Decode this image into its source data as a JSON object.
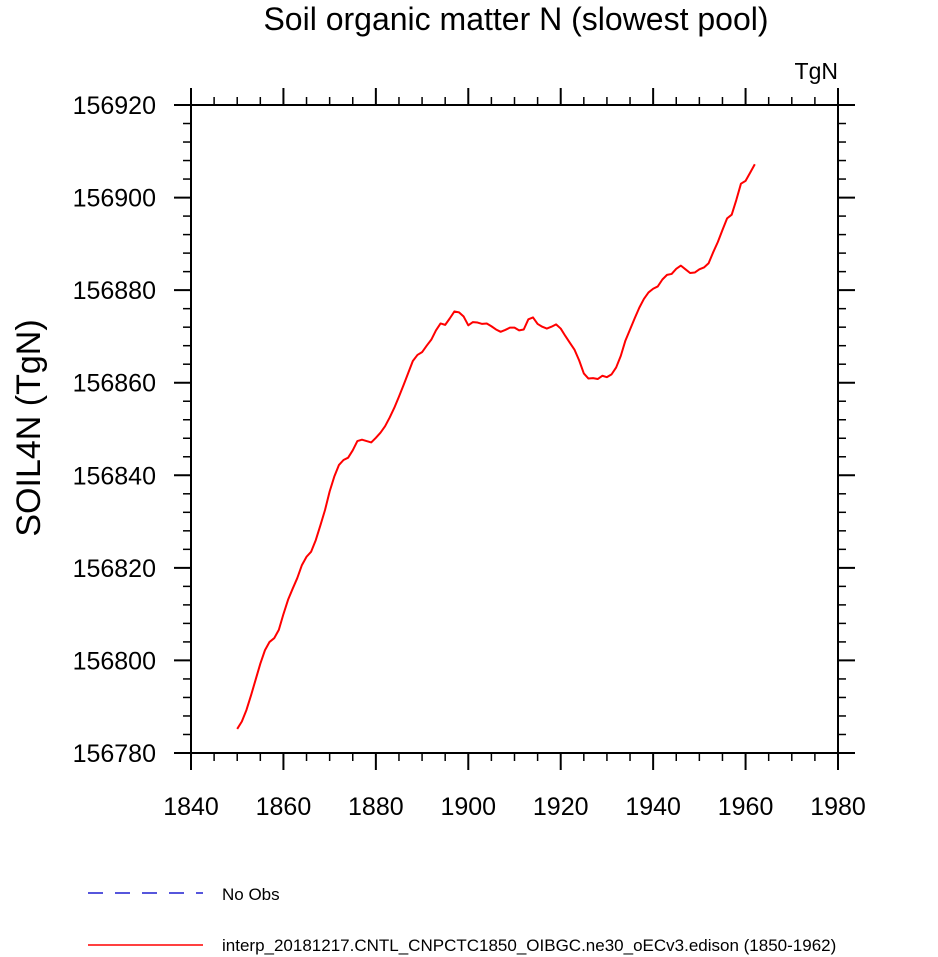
{
  "chart_data": {
    "type": "line",
    "title": "Soil organic matter N (slowest pool)",
    "units_label": "TgN",
    "ylabel": "SOIL4N  (TgN)",
    "xlabel": "",
    "xlim": [
      1840,
      1980
    ],
    "ylim": [
      156780,
      156920
    ],
    "xticks": [
      1840,
      1860,
      1880,
      1900,
      1920,
      1940,
      1960,
      1980
    ],
    "yticks": [
      156780,
      156800,
      156820,
      156840,
      156860,
      156880,
      156900,
      156920
    ],
    "x_minor_step": 5,
    "y_minor_step": 4,
    "grid": false,
    "legend_position": "bottom-left",
    "series": [
      {
        "name": "No Obs",
        "color": "#1f1fd0",
        "dash": "dashed",
        "x": [],
        "y": []
      },
      {
        "name": "interp_20181217.CNTL_CNPCTC1850_OIBGC.ne30_oECv3.edison (1850-1962)",
        "color": "#ff0000",
        "dash": "solid",
        "x": [
          1850,
          1851,
          1852,
          1853,
          1854,
          1855,
          1856,
          1857,
          1858,
          1859,
          1860,
          1861,
          1862,
          1863,
          1864,
          1865,
          1866,
          1867,
          1868,
          1869,
          1870,
          1871,
          1872,
          1873,
          1874,
          1875,
          1876,
          1877,
          1878,
          1879,
          1880,
          1881,
          1882,
          1883,
          1884,
          1885,
          1886,
          1887,
          1888,
          1889,
          1890,
          1891,
          1892,
          1893,
          1894,
          1895,
          1896,
          1897,
          1898,
          1899,
          1900,
          1901,
          1902,
          1903,
          1904,
          1905,
          1906,
          1907,
          1908,
          1909,
          1910,
          1911,
          1912,
          1913,
          1914,
          1915,
          1916,
          1917,
          1918,
          1919,
          1920,
          1921,
          1922,
          1923,
          1924,
          1925,
          1926,
          1927,
          1928,
          1929,
          1930,
          1931,
          1932,
          1933,
          1934,
          1935,
          1936,
          1937,
          1938,
          1939,
          1940,
          1941,
          1942,
          1943,
          1944,
          1945,
          1946,
          1947,
          1948,
          1949,
          1950,
          1951,
          1952,
          1953,
          1954,
          1955,
          1956,
          1957,
          1958,
          1959,
          1960,
          1961,
          1962
        ],
        "y": [
          156785.2,
          156786.8,
          156789.3,
          156792.5,
          156795.9,
          156799.3,
          156802.2,
          156804.0,
          156804.8,
          156806.6,
          156810.0,
          156813.1,
          156815.5,
          156817.8,
          156820.6,
          156822.4,
          156823.5,
          156826.0,
          156829.2,
          156832.5,
          156836.5,
          156839.7,
          156842.2,
          156843.3,
          156843.8,
          156845.4,
          156847.4,
          156847.7,
          156847.4,
          156847.1,
          156848.1,
          156849.2,
          156850.6,
          156852.5,
          156854.6,
          156857.0,
          156859.5,
          156862.1,
          156864.7,
          156866.0,
          156866.6,
          156868.0,
          156869.3,
          156871.3,
          156872.8,
          156872.5,
          156873.9,
          156875.4,
          156875.2,
          156874.3,
          156872.4,
          156873.1,
          156873.0,
          156872.7,
          156872.8,
          156872.2,
          156871.5,
          156871.0,
          156871.4,
          156871.9,
          156871.9,
          156871.3,
          156871.5,
          156873.7,
          156874.1,
          156872.7,
          156872.1,
          156871.7,
          156872.1,
          156872.6,
          156871.7,
          156870.1,
          156868.6,
          156867.1,
          156864.8,
          156862.0,
          156860.9,
          156861.0,
          156860.8,
          156861.5,
          156861.2,
          156861.8,
          156863.3,
          156865.8,
          156869.1,
          156871.5,
          156873.9,
          156876.2,
          156878.1,
          156879.5,
          156880.3,
          156880.8,
          156882.3,
          156883.3,
          156883.5,
          156884.6,
          156885.3,
          156884.5,
          156883.7,
          156883.8,
          156884.5,
          156884.9,
          156885.8,
          156888.2,
          156890.4,
          156893.0,
          156895.5,
          156896.3,
          156899.5,
          156903.0,
          156903.6,
          156905.4,
          156907.2
        ]
      }
    ]
  }
}
